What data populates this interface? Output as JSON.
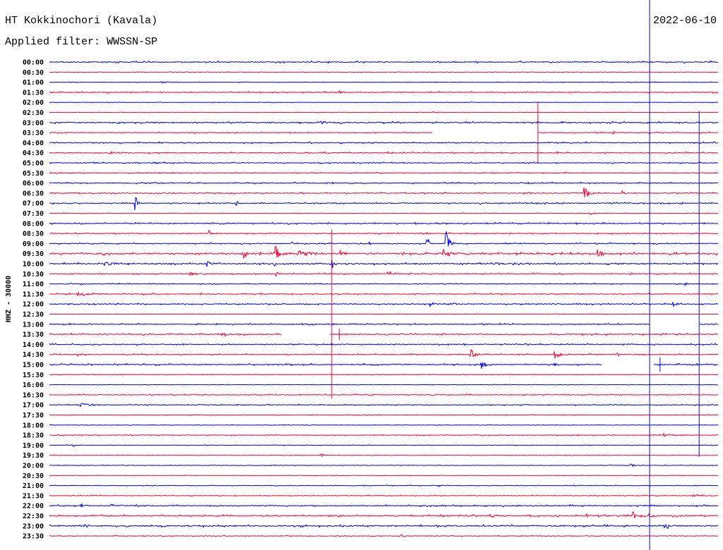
{
  "chart_data": {
    "type": "line",
    "title": "HT Kokkinochori (Kavala)",
    "date": "2022-06-10",
    "subtitle": "Applied filter: WWSSN-SP",
    "ylabel": "HHZ - 30000",
    "amplitude_scale": 30000,
    "xlim": [
      0,
      30
    ],
    "colors": {
      "even_rows": "#0000ff",
      "odd_rows": "#ff0033",
      "marker": "#0000ff"
    },
    "marker_minute": 26.93,
    "rows": [
      {
        "label": "00:00",
        "noise": 3600,
        "events": [],
        "gaps": []
      },
      {
        "label": "00:30",
        "noise": 1200,
        "events": [],
        "gaps": []
      },
      {
        "label": "01:00",
        "noise": 1500,
        "events": [
          [
            5.0,
            4000,
            0.8
          ]
        ],
        "gaps": []
      },
      {
        "label": "01:30",
        "noise": 3000,
        "events": [
          [
            13.0,
            6000,
            0.6
          ]
        ],
        "gaps": []
      },
      {
        "label": "02:00",
        "noise": 1300,
        "events": [],
        "gaps": []
      },
      {
        "label": "02:30",
        "noise": 1400,
        "events": [
          [
            17.2,
            4000,
            0.9
          ]
        ],
        "gaps": []
      },
      {
        "label": "03:00",
        "noise": 3800,
        "events": [
          [
            12.2,
            7000,
            0.7
          ],
          [
            21.9,
            3000,
            0.3
          ],
          [
            23.0,
            4000,
            0.3
          ]
        ],
        "gaps": []
      },
      {
        "label": "03:30",
        "noise": 2700,
        "events": [
          [
            21.92,
            92000,
            0
          ],
          [
            25.3,
            5000,
            0.8
          ]
        ],
        "gaps": [
          [
            17.2,
            21.9
          ]
        ]
      },
      {
        "label": "04:00",
        "noise": 3300,
        "events": [],
        "gaps": []
      },
      {
        "label": "04:30",
        "noise": 3100,
        "events": [
          [
            2.8,
            5000,
            0.6
          ],
          [
            15.2,
            4000,
            0.6
          ],
          [
            22.8,
            4000,
            0.4
          ]
        ],
        "gaps": []
      },
      {
        "label": "05:00",
        "noise": 2700,
        "events": [
          [
            4.7,
            5000,
            1.0
          ]
        ],
        "gaps": []
      },
      {
        "label": "05:30",
        "noise": 2400,
        "events": [],
        "gaps": []
      },
      {
        "label": "06:00",
        "noise": 3200,
        "events": [
          [
            21.4,
            5000,
            0.5
          ]
        ],
        "gaps": []
      },
      {
        "label": "06:30",
        "noise": 3000,
        "events": [
          [
            24.0,
            20000,
            0.6
          ],
          [
            25.7,
            8000,
            0.3
          ]
        ],
        "gaps": []
      },
      {
        "label": "07:00",
        "noise": 3200,
        "events": [
          [
            3.86,
            28000,
            0.3
          ],
          [
            8.4,
            12000,
            0.3
          ],
          [
            9.5,
            4000,
            0.3
          ]
        ],
        "gaps": []
      },
      {
        "label": "07:30",
        "noise": 1700,
        "events": [
          [
            24.2,
            5000,
            0.8
          ]
        ],
        "gaps": []
      },
      {
        "label": "08:00",
        "noise": 3400,
        "events": [],
        "gaps": []
      },
      {
        "label": "08:30",
        "noise": 2800,
        "events": [
          [
            7.2,
            10000,
            0.2
          ],
          [
            16.9,
            6000,
            0.3
          ]
        ],
        "gaps": []
      },
      {
        "label": "09:00",
        "noise": 3000,
        "events": [
          [
            10.9,
            8000,
            0.3
          ],
          [
            14.4,
            6000,
            0.3
          ],
          [
            16.95,
            22000,
            0.3
          ],
          [
            17.8,
            42000,
            0.4
          ],
          [
            25.2,
            5000,
            0.3
          ]
        ],
        "gaps": []
      },
      {
        "label": "09:30",
        "noise": 5000,
        "events": [
          [
            8.7,
            15000,
            0.4
          ],
          [
            10.1,
            28000,
            0.6
          ],
          [
            11.2,
            10000,
            1.5
          ],
          [
            13.1,
            10000,
            0.5
          ],
          [
            17.7,
            20000,
            0.6
          ],
          [
            18.7,
            8000,
            0.4
          ],
          [
            24.6,
            14000,
            0.6
          ]
        ],
        "gaps": []
      },
      {
        "label": "10:00",
        "noise": 4000,
        "events": [
          [
            2.5,
            6000,
            1.5
          ],
          [
            7.1,
            10000,
            0.5
          ],
          [
            10.1,
            8000,
            0.2
          ],
          [
            12.7,
            15000,
            0.15
          ],
          [
            20.0,
            5000,
            0.8
          ]
        ],
        "gaps": []
      },
      {
        "label": "10:30",
        "noise": 3000,
        "events": [
          [
            6.3,
            8000,
            0.8
          ],
          [
            10.2,
            8000,
            0.3
          ],
          [
            15.2,
            9000,
            0.9
          ],
          [
            26.1,
            6000,
            0.2
          ]
        ],
        "gaps": []
      },
      {
        "label": "11:00",
        "noise": 2700,
        "events": [
          [
            28.5,
            8000,
            0.3
          ],
          [
            29.15,
            514000,
            0
          ]
        ],
        "gaps": []
      },
      {
        "label": "11:30",
        "noise": 3100,
        "events": [
          [
            1.3,
            7000,
            1.2
          ],
          [
            9.5,
            4000,
            0.4
          ]
        ],
        "gaps": []
      },
      {
        "label": "12:00",
        "noise": 3100,
        "events": [
          [
            17.1,
            9000,
            0.5
          ],
          [
            18.1,
            6000,
            0.5
          ],
          [
            28.0,
            8000,
            0.4
          ]
        ],
        "gaps": []
      },
      {
        "label": "12:30",
        "noise": 1300,
        "events": [
          [
            12.67,
            252000,
            0
          ]
        ],
        "gaps": []
      },
      {
        "label": "13:00",
        "noise": 3100,
        "events": [],
        "gaps": [
          [
            26.93,
            29.15
          ]
        ]
      },
      {
        "label": "13:30",
        "noise": 3700,
        "events": [
          [
            7.8,
            6000,
            0.6
          ],
          [
            13.0,
            17000,
            0
          ]
        ],
        "gaps": [
          [
            10.4,
            12.6
          ]
        ]
      },
      {
        "label": "14:00",
        "noise": 3200,
        "events": [],
        "gaps": []
      },
      {
        "label": "14:30",
        "noise": 3100,
        "events": [
          [
            1.3,
            8000,
            0.4
          ],
          [
            18.9,
            20000,
            0.5
          ],
          [
            22.7,
            16000,
            0.5
          ],
          [
            25.5,
            12000,
            0.5
          ]
        ],
        "gaps": []
      },
      {
        "label": "15:00",
        "noise": 3600,
        "events": [
          [
            19.4,
            16000,
            0.5
          ],
          [
            22.7,
            6000,
            0.3
          ],
          [
            27.4,
            21000,
            0
          ]
        ],
        "gaps": [
          [
            24.8,
            27.1
          ]
        ]
      },
      {
        "label": "15:30",
        "noise": 1700,
        "events": [],
        "gaps": []
      },
      {
        "label": "16:00",
        "noise": 1600,
        "events": [],
        "gaps": []
      },
      {
        "label": "16:30",
        "noise": 2700,
        "events": [],
        "gaps": []
      },
      {
        "label": "17:00",
        "noise": 2700,
        "events": [
          [
            1.4,
            8000,
            1.2
          ]
        ],
        "gaps": []
      },
      {
        "label": "17:30",
        "noise": 1700,
        "events": [],
        "gaps": []
      },
      {
        "label": "18:00",
        "noise": 1500,
        "events": [],
        "gaps": []
      },
      {
        "label": "18:30",
        "noise": 2500,
        "events": [
          [
            27.6,
            6000,
            0.9
          ]
        ],
        "gaps": []
      },
      {
        "label": "19:00",
        "noise": 1600,
        "events": [
          [
            1.1,
            6000,
            0.1
          ]
        ],
        "gaps": []
      },
      {
        "label": "19:30",
        "noise": 1600,
        "events": [
          [
            12.2,
            4000,
            0.6
          ]
        ],
        "gaps": []
      },
      {
        "label": "20:00",
        "noise": 1600,
        "events": [
          [
            26.1,
            6000,
            0.6
          ]
        ],
        "gaps": []
      },
      {
        "label": "20:30",
        "noise": 1300,
        "events": [],
        "gaps": []
      },
      {
        "label": "21:00",
        "noise": 1700,
        "events": [
          [
            17.5,
            4000,
            0.5
          ]
        ],
        "gaps": []
      },
      {
        "label": "21:30",
        "noise": 2000,
        "events": [
          [
            28.9,
            5000,
            0.8
          ]
        ],
        "gaps": []
      },
      {
        "label": "22:00",
        "noise": 3500,
        "events": [
          [
            1.4,
            5000,
            0.5
          ],
          [
            2.8,
            5000,
            0.4
          ]
        ],
        "gaps": []
      },
      {
        "label": "22:30",
        "noise": 3700,
        "events": [
          [
            13.0,
            8000,
            0.3
          ],
          [
            19.8,
            10000,
            0.5
          ],
          [
            24.1,
            8000,
            0.4
          ],
          [
            26.2,
            12000,
            0.4
          ],
          [
            26.9,
            6000,
            0.3
          ]
        ],
        "gaps": []
      },
      {
        "label": "23:00",
        "noise": 4300,
        "events": [
          [
            1.6,
            8000,
            0.5
          ],
          [
            27.6,
            10000,
            0.6
          ]
        ],
        "gaps": []
      },
      {
        "label": "23:30",
        "noise": 2100,
        "events": [
          [
            15.8,
            5000,
            0.5
          ]
        ],
        "gaps": []
      }
    ]
  }
}
